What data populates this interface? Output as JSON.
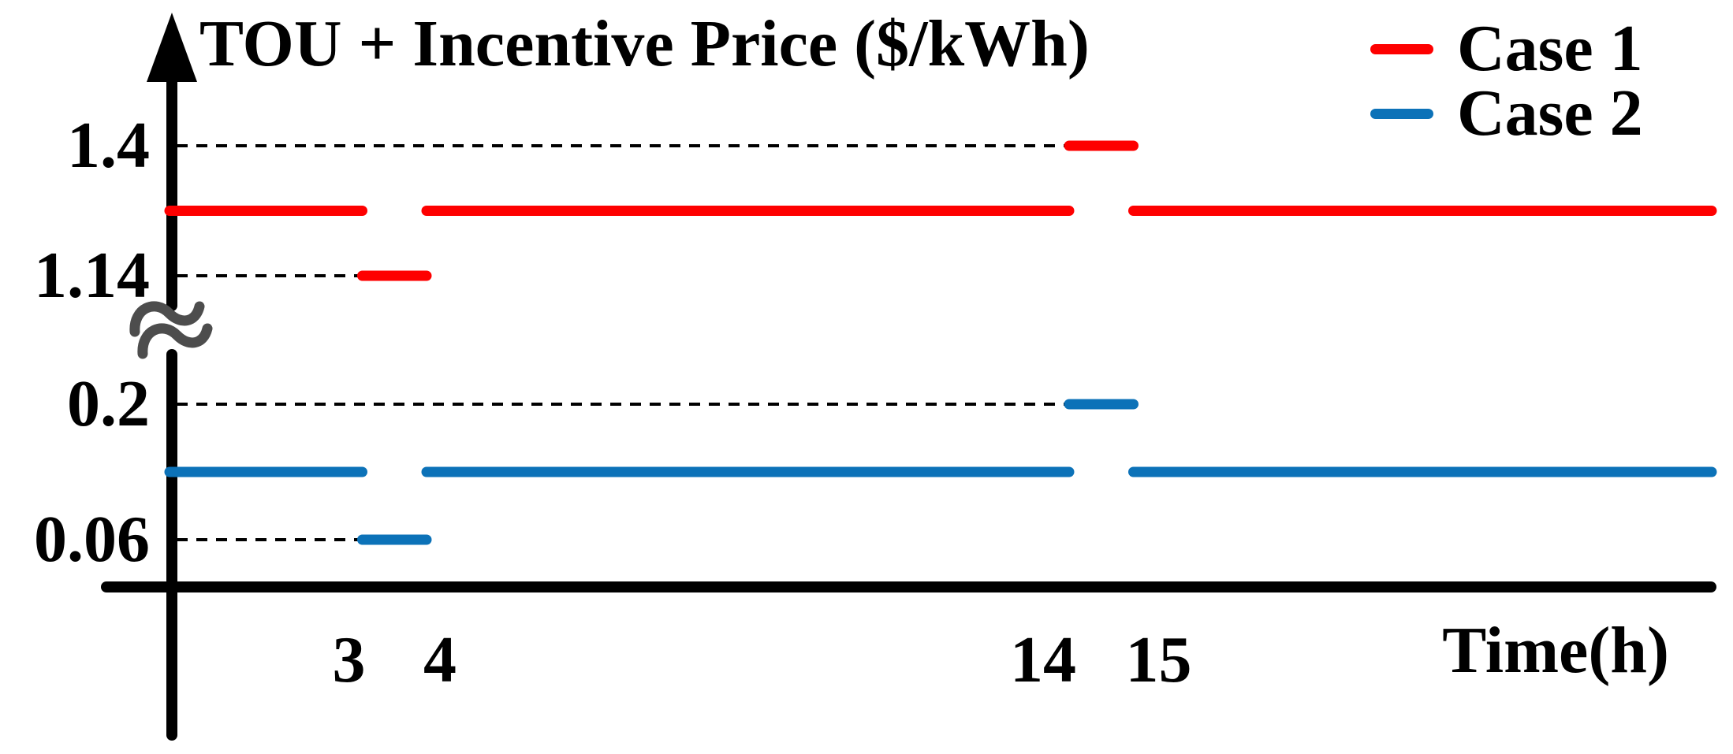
{
  "title": "TOU + Incentive Price ($/kWh)",
  "x_axis_label": "Time(h)",
  "legend": [
    {
      "label": "Case 1",
      "color": "#fe0000"
    },
    {
      "label": "Case 2",
      "color": "#0c72b8"
    }
  ],
  "colors": {
    "case1_red": "#fe0000",
    "case2_blue": "#0c72b8",
    "axis_black": "#000000",
    "break_gray": "#4d4d4d",
    "background": "#ffffff"
  },
  "chart_data": {
    "type": "line",
    "subtype": "step-price-schematic",
    "title": "TOU + Incentive Price ($/kWh)",
    "xlabel": "Time(h)",
    "ylabel": "",
    "x_range_hours": [
      0,
      24
    ],
    "grid": false,
    "legend_position": "top-right",
    "y_axis_break_between": [
      0.2,
      1.14
    ],
    "x_ticks": [
      {
        "hour": 3,
        "label": "3"
      },
      {
        "hour": 4,
        "label": "4"
      },
      {
        "hour": 14,
        "label": "14"
      },
      {
        "hour": 15,
        "label": "15"
      }
    ],
    "y_ticks": [
      {
        "value": 1.4,
        "label": "1.4"
      },
      {
        "value": 1.14,
        "label": "1.14"
      },
      {
        "value": 0.2,
        "label": "0.2"
      },
      {
        "value": 0.06,
        "label": "0.06"
      }
    ],
    "series": [
      {
        "name": "Case 1",
        "color": "#fe0000",
        "segments": [
          {
            "from_hour": 0,
            "to_hour": 3,
            "value": 1.27
          },
          {
            "from_hour": 3,
            "to_hour": 4,
            "value": 1.14
          },
          {
            "from_hour": 4,
            "to_hour": 14,
            "value": 1.27
          },
          {
            "from_hour": 14,
            "to_hour": 15,
            "value": 1.4
          },
          {
            "from_hour": 15,
            "to_hour": 24,
            "value": 1.27
          }
        ]
      },
      {
        "name": "Case 2",
        "color": "#0c72b8",
        "segments": [
          {
            "from_hour": 0,
            "to_hour": 3,
            "value": 0.13
          },
          {
            "from_hour": 3,
            "to_hour": 4,
            "value": 0.06
          },
          {
            "from_hour": 4,
            "to_hour": 14,
            "value": 0.13
          },
          {
            "from_hour": 14,
            "to_hour": 15,
            "value": 0.2
          },
          {
            "from_hour": 15,
            "to_hour": 24,
            "value": 0.13
          }
        ]
      }
    ],
    "guides": [
      {
        "value": 1.4,
        "from_hour": 0,
        "to_hour": 14
      },
      {
        "value": 1.14,
        "from_hour": 0,
        "to_hour": 3
      },
      {
        "value": 0.2,
        "from_hour": 0,
        "to_hour": 14
      },
      {
        "value": 0.06,
        "from_hour": 0,
        "to_hour": 3
      }
    ]
  }
}
